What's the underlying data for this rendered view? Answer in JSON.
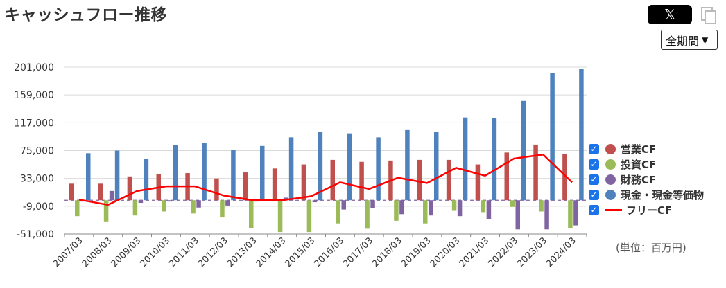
{
  "header": {
    "title": "キャッシュフロー推移",
    "x_share_icon": "x-logo",
    "copy_icon": "copy-icon"
  },
  "period_select": {
    "selected": "全期間"
  },
  "unit_label": "(単位：百万円)",
  "legend": [
    {
      "label": "営業CF",
      "color": "#c0504d",
      "checked": true,
      "kind": "bar"
    },
    {
      "label": "投資CF",
      "color": "#9bbb59",
      "checked": true,
      "kind": "bar"
    },
    {
      "label": "財務CF",
      "color": "#8064a2",
      "checked": true,
      "kind": "bar"
    },
    {
      "label": "現金・現金等価物",
      "color": "#4f81bd",
      "checked": true,
      "kind": "bar"
    },
    {
      "label": "フリーCF",
      "color": "#ff0000",
      "checked": true,
      "kind": "line"
    }
  ],
  "chart_data": {
    "type": "bar",
    "categories": [
      "2007/03",
      "2008/03",
      "2009/03",
      "2010/03",
      "2011/03",
      "2012/03",
      "2013/03",
      "2014/03",
      "2015/03",
      "2016/03",
      "2017/03",
      "2018/03",
      "2019/03",
      "2020/03",
      "2021/03",
      "2022/03",
      "2023/03",
      "2024/03"
    ],
    "y_ticks": [
      "201,000",
      "159,000",
      "117,000",
      "75,000",
      "33,000",
      "-9,000",
      "-51,000"
    ],
    "ylim": [
      -51000,
      201000
    ],
    "grid": true,
    "series": [
      {
        "name": "営業CF",
        "color": "#c0504d",
        "values": [
          25000,
          25000,
          36000,
          39000,
          41000,
          33000,
          42000,
          48000,
          54000,
          61000,
          58000,
          60000,
          61000,
          61000,
          54000,
          72000,
          84000,
          70000
        ]
      },
      {
        "name": "投資CF",
        "color": "#9bbb59",
        "values": [
          -24000,
          -32000,
          -23000,
          -17000,
          -20000,
          -26000,
          -42000,
          -48000,
          -48000,
          -35000,
          -43000,
          -31000,
          -35000,
          -16000,
          -18000,
          -10000,
          -17000,
          -42000
        ]
      },
      {
        "name": "財務CF",
        "color": "#8064a2",
        "values": [
          -2000,
          14000,
          -4000,
          -2000,
          -11000,
          -8000,
          -2000,
          4000,
          -3000,
          -14000,
          -12000,
          -21000,
          -23000,
          -24000,
          -29000,
          -44000,
          -44000,
          -38000
        ]
      },
      {
        "name": "現金・現金等価物",
        "color": "#4f81bd",
        "values": [
          71000,
          75000,
          63000,
          83000,
          87000,
          76000,
          82000,
          95000,
          103000,
          101000,
          95000,
          106000,
          103000,
          125000,
          124000,
          150000,
          192000,
          198000
        ]
      }
    ],
    "line_series": {
      "name": "フリーCF",
      "color": "#ff0000",
      "values": [
        1000,
        -7000,
        14000,
        21000,
        21000,
        7000,
        0,
        0,
        6000,
        27000,
        17000,
        34000,
        26000,
        49000,
        37000,
        63000,
        69000,
        27000
      ]
    }
  }
}
